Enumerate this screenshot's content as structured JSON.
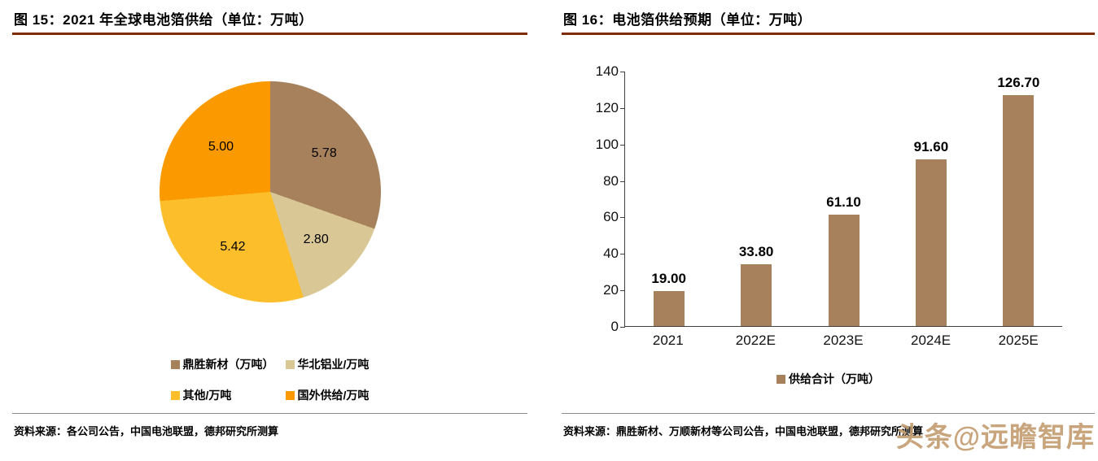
{
  "page": {
    "accent_rule_color": "#7f2b00",
    "source_rule_color": "#8c8c8c",
    "watermark": "头条@远瞻智库",
    "watermark_color": "#c59e72"
  },
  "left_panel": {
    "title": "图 15：2021 年全球电池箔供给（单位：万吨）",
    "source": "资料来源：各公司公告，中国电池联盟，德邦研究所测算"
  },
  "right_panel": {
    "title": "图 16：电池箔供给预期（单位：万吨）",
    "source": "资料来源：鼎胜新材、万顺新材等公司公告，中国电池联盟，德邦研究所测算"
  },
  "chart_data": [
    {
      "type": "pie",
      "title": "2021 年全球电池箔供给（单位：万吨）",
      "unit": "万吨",
      "legend_position": "bottom",
      "slices": [
        {
          "label": "鼎胜新材（万吨）",
          "value": 5.78,
          "display": "5.78",
          "color": "#a6815c"
        },
        {
          "label": "华北铝业/万吨",
          "value": 2.8,
          "display": "2.80",
          "color": "#d9c795"
        },
        {
          "label": "其他/万吨",
          "value": 5.42,
          "display": "5.42",
          "color": "#fcbf2b"
        },
        {
          "label": "国外供给/万吨",
          "value": 5.0,
          "display": "5.00",
          "color": "#fb9900"
        }
      ]
    },
    {
      "type": "bar",
      "title": "电池箔供给预期（单位：万吨）",
      "categories": [
        "2021",
        "2022E",
        "2023E",
        "2024E",
        "2025E"
      ],
      "values": [
        19.0,
        33.8,
        61.1,
        91.6,
        126.7
      ],
      "value_labels": [
        "19.00",
        "33.80",
        "61.10",
        "91.60",
        "126.70"
      ],
      "ylim": [
        0,
        140
      ],
      "ytick_step": 20,
      "grid": false,
      "bar_color": "#a6815c",
      "legend_position": "bottom",
      "legend": [
        {
          "label": "供给合计（万吨）",
          "color": "#a6815c"
        }
      ]
    }
  ]
}
